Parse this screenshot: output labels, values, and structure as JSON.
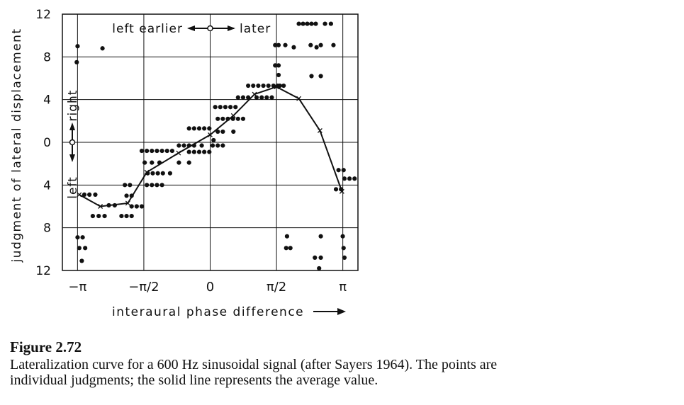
{
  "chart_data": {
    "type": "scatter",
    "title": "",
    "xlabel": "interaural phase difference",
    "ylabel": "judgment of lateral displacement",
    "x_ticks": [
      {
        "value": -3.1416,
        "label": "−π"
      },
      {
        "value": -1.5708,
        "label": "−π/2"
      },
      {
        "value": 0,
        "label": "0"
      },
      {
        "value": 1.5708,
        "label": "π/2"
      },
      {
        "value": 3.1416,
        "label": "π"
      }
    ],
    "y_ticks": [
      {
        "value": 12,
        "label": "12"
      },
      {
        "value": 8,
        "label": "8"
      },
      {
        "value": 4,
        "label": "4"
      },
      {
        "value": 0,
        "label": "0"
      },
      {
        "value": -4,
        "label": "4"
      },
      {
        "value": -8,
        "label": "8"
      },
      {
        "value": -12,
        "label": "12"
      }
    ],
    "xlim": [
      -3.5,
      3.5
    ],
    "ylim": [
      -12,
      12
    ],
    "grid": true,
    "annotations": {
      "left_earlier": "left earlier",
      "later": "later",
      "right": "right",
      "left": "left"
    },
    "series": [
      {
        "type": "scatter",
        "points": [
          [
            -3.14,
            9
          ],
          [
            -3.16,
            7.5
          ],
          [
            -3.14,
            -8.9
          ],
          [
            -3.02,
            -8.9
          ],
          [
            -3.1,
            -9.9
          ],
          [
            -2.96,
            -9.9
          ],
          [
            -3.04,
            -11.1
          ],
          [
            -2.98,
            -4.9
          ],
          [
            -2.86,
            -4.9
          ],
          [
            -2.72,
            -4.9
          ],
          [
            -2.55,
            8.8
          ],
          [
            -2.78,
            -6.9
          ],
          [
            -2.64,
            -6.9
          ],
          [
            -2.5,
            -6.9
          ],
          [
            -2.4,
            -5.9
          ],
          [
            -2.26,
            -5.9
          ],
          [
            -2.1,
            -6.9
          ],
          [
            -1.98,
            -6.9
          ],
          [
            -1.86,
            -6.9
          ],
          [
            -2.02,
            -4
          ],
          [
            -1.9,
            -4
          ],
          [
            -1.98,
            -5
          ],
          [
            -1.86,
            -5
          ],
          [
            -1.86,
            -6
          ],
          [
            -1.74,
            -6
          ],
          [
            -1.62,
            -6
          ],
          [
            -1.62,
            -0.8
          ],
          [
            -1.5,
            -0.8
          ],
          [
            -1.38,
            -0.8
          ],
          [
            -1.26,
            -0.8
          ],
          [
            -1.14,
            -0.8
          ],
          [
            -1.02,
            -0.8
          ],
          [
            -0.9,
            -0.8
          ],
          [
            -1.55,
            -1.9
          ],
          [
            -1.48,
            -2.9
          ],
          [
            -1.36,
            -2.9
          ],
          [
            -1.24,
            -2.9
          ],
          [
            -1.12,
            -2.9
          ],
          [
            -1.5,
            -4
          ],
          [
            -1.38,
            -4
          ],
          [
            -1.26,
            -4
          ],
          [
            -1.14,
            -4
          ],
          [
            -1.38,
            -1.9
          ],
          [
            -1.2,
            -1.9
          ],
          [
            -0.95,
            -2.9
          ],
          [
            -0.74,
            -0.3
          ],
          [
            -0.62,
            -0.3
          ],
          [
            -0.5,
            -0.3
          ],
          [
            -0.38,
            -0.3
          ],
          [
            -0.5,
            -0.9
          ],
          [
            -0.38,
            -0.9
          ],
          [
            -0.26,
            -0.9
          ],
          [
            -0.14,
            -0.9
          ],
          [
            -0.02,
            -0.9
          ],
          [
            -0.74,
            -1.9
          ],
          [
            -0.5,
            -1.9
          ],
          [
            -0.5,
            1.3
          ],
          [
            -0.38,
            1.3
          ],
          [
            -0.26,
            1.3
          ],
          [
            -0.14,
            1.3
          ],
          [
            -0.02,
            1.3
          ],
          [
            -0.2,
            -0.3
          ],
          [
            0.06,
            -0.3
          ],
          [
            0.18,
            -0.3
          ],
          [
            0.3,
            -0.3
          ],
          [
            0.12,
            3.3
          ],
          [
            0.24,
            3.3
          ],
          [
            0.36,
            3.3
          ],
          [
            0.48,
            3.3
          ],
          [
            0.6,
            3.3
          ],
          [
            0.18,
            2.2
          ],
          [
            0.3,
            2.2
          ],
          [
            0.42,
            2.2
          ],
          [
            0.54,
            2.2
          ],
          [
            0.66,
            2.2
          ],
          [
            0.78,
            2.2
          ],
          [
            0.18,
            1
          ],
          [
            0.3,
            1
          ],
          [
            0.55,
            1
          ],
          [
            0.08,
            0.2
          ],
          [
            0.66,
            4.2
          ],
          [
            0.78,
            4.2
          ],
          [
            0.9,
            4.2
          ],
          [
            0.9,
            5.3
          ],
          [
            1.02,
            5.3
          ],
          [
            1.14,
            5.3
          ],
          [
            1.26,
            5.3
          ],
          [
            1.38,
            5.3
          ],
          [
            1.5,
            5.3
          ],
          [
            1.65,
            5.3
          ],
          [
            1.74,
            5.3
          ],
          [
            1.1,
            4.2
          ],
          [
            1.22,
            4.2
          ],
          [
            1.34,
            4.2
          ],
          [
            1.46,
            4.2
          ],
          [
            1.6,
            5.3
          ],
          [
            1.62,
            6.3
          ],
          [
            1.54,
            7.2
          ],
          [
            1.62,
            7.2
          ],
          [
            1.54,
            9.1
          ],
          [
            1.62,
            9.1
          ],
          [
            1.78,
            9.1
          ],
          [
            1.98,
            8.9
          ],
          [
            1.8,
            -9.9
          ],
          [
            1.9,
            -9.9
          ],
          [
            1.82,
            -8.8
          ],
          [
            2.1,
            11.1
          ],
          [
            2.2,
            11.1
          ],
          [
            2.3,
            11.1
          ],
          [
            2.4,
            11.1
          ],
          [
            2.5,
            11.1
          ],
          [
            2.72,
            11.1
          ],
          [
            2.86,
            11.1
          ],
          [
            2.4,
            6.2
          ],
          [
            2.62,
            6.2
          ],
          [
            2.38,
            9.1
          ],
          [
            2.62,
            9.1
          ],
          [
            2.52,
            8.9
          ],
          [
            2.92,
            9.1
          ],
          [
            2.62,
            -8.8
          ],
          [
            2.48,
            -10.8
          ],
          [
            2.62,
            -10.8
          ],
          [
            2.58,
            -11.8
          ],
          [
            2.98,
            -4.4
          ],
          [
            3.1,
            -4.4
          ],
          [
            3.04,
            -2.6
          ],
          [
            3.16,
            -2.6
          ],
          [
            3.18,
            -3.4
          ],
          [
            3.3,
            -3.4
          ],
          [
            3.42,
            -3.4
          ],
          [
            3.14,
            -8.8
          ],
          [
            3.16,
            -9.9
          ],
          [
            3.18,
            -10.8
          ]
        ]
      },
      {
        "type": "line",
        "points": [
          [
            -3.1,
            -4.9
          ],
          [
            -2.6,
            -6
          ],
          [
            -1.95,
            -5.7
          ],
          [
            -1.5,
            -2.8
          ],
          [
            -0.75,
            -1
          ],
          [
            0,
            0.7
          ],
          [
            0.55,
            2.5
          ],
          [
            1.05,
            4.5
          ],
          [
            1.57,
            5.2
          ],
          [
            2.1,
            4.1
          ],
          [
            2.6,
            1.1
          ],
          [
            3.12,
            -4.6
          ]
        ]
      }
    ]
  },
  "caption": {
    "title": "Figure 2.72",
    "line1": "Lateralization curve for a 600 Hz sinusoidal signal (after Sayers 1964). The points are",
    "line2": "individual judgments; the solid line represents the average value."
  }
}
